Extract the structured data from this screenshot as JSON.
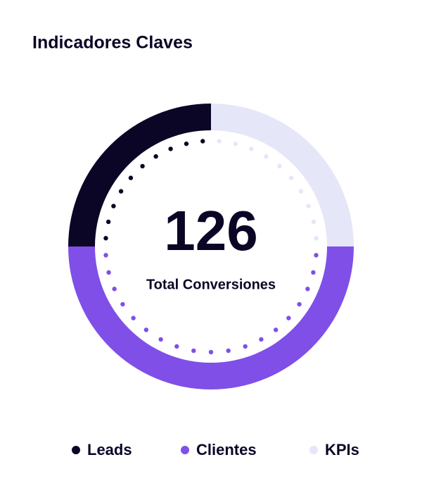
{
  "chart_data": {
    "type": "donut",
    "title": "Indicadores Claves",
    "center_value": 126,
    "center_label": "Total Conversiones",
    "categories": [
      "Leads",
      "Clientes",
      "KPIs"
    ],
    "values": [
      25,
      50,
      25
    ],
    "colors": [
      "#0b0526",
      "#7f4fe8",
      "#e6e6f9"
    ]
  }
}
